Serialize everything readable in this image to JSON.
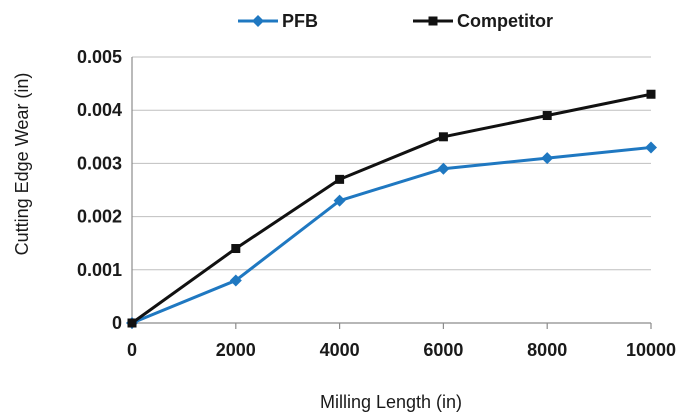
{
  "chart_data": {
    "type": "line",
    "title": "",
    "xlabel": "Milling Length (in)",
    "ylabel": "Cutting Edge Wear (in)",
    "x": [
      0,
      2000,
      4000,
      6000,
      8000,
      10000
    ],
    "xlim": [
      0,
      10000
    ],
    "ylim": [
      0,
      0.005
    ],
    "x_ticks": [
      "0",
      "2000",
      "4000",
      "6000",
      "8000",
      "10000"
    ],
    "y_ticks": [
      "0",
      "0.001",
      "0.002",
      "0.003",
      "0.004",
      "0.005"
    ],
    "grid": "horizontal",
    "legend_position": "top-center",
    "series": [
      {
        "name": "PFB",
        "color": "#1f78c1",
        "marker": "diamond",
        "values": [
          0,
          0.0008,
          0.0023,
          0.0029,
          0.0031,
          0.0033
        ]
      },
      {
        "name": "Competitor",
        "color": "#111111",
        "marker": "square",
        "values": [
          0,
          0.0014,
          0.0027,
          0.0035,
          0.0039,
          0.0043
        ]
      }
    ]
  }
}
